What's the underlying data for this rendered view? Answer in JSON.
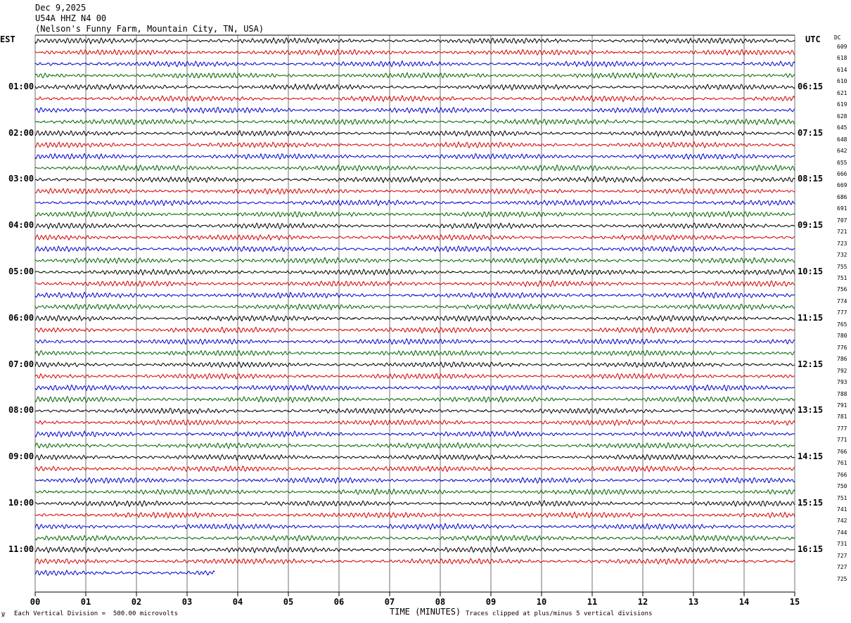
{
  "header": {
    "date": "Dec 9,2025",
    "station": "U54A HHZ N4 00",
    "location": "(Nelson's Funny Farm, Mountain City, TN, USA)"
  },
  "left_timezone": "EST",
  "right_timezone": "UTC",
  "dc_label": "DC",
  "footer": {
    "scale_note": "Each Vertical Division =  500.00 microvolts",
    "xlabel": "TIME (MINUTES)",
    "clip_note": "Traces clipped at plus/minus 5 vertical divisions",
    "corner_mark": "℣"
  },
  "colors": {
    "cycle": [
      "#000000",
      "#d40000",
      "#0000cc",
      "#006400"
    ],
    "grid": "#707070"
  },
  "chart_data": {
    "type": "line",
    "title": "",
    "xlabel": "TIME (MINUTES)",
    "ylabel": "",
    "xlim": [
      0,
      15
    ],
    "x_ticks": [
      "00",
      "01",
      "02",
      "03",
      "04",
      "05",
      "06",
      "07",
      "08",
      "09",
      "10",
      "11",
      "12",
      "13",
      "14",
      "15"
    ],
    "grid": true,
    "minutes_per_line": 15,
    "rows": [
      {
        "left": "",
        "right": "",
        "dc": "609"
      },
      {
        "left": "",
        "right": "",
        "dc": "618"
      },
      {
        "left": "",
        "right": "",
        "dc": "614"
      },
      {
        "left": "",
        "right": "",
        "dc": "610"
      },
      {
        "left": "01:00",
        "right": "06:15",
        "dc": "621"
      },
      {
        "left": "",
        "right": "",
        "dc": "619"
      },
      {
        "left": "",
        "right": "",
        "dc": "628"
      },
      {
        "left": "",
        "right": "",
        "dc": "645"
      },
      {
        "left": "02:00",
        "right": "07:15",
        "dc": "648"
      },
      {
        "left": "",
        "right": "",
        "dc": "642"
      },
      {
        "left": "",
        "right": "",
        "dc": "655"
      },
      {
        "left": "",
        "right": "",
        "dc": "666"
      },
      {
        "left": "03:00",
        "right": "08:15",
        "dc": "669"
      },
      {
        "left": "",
        "right": "",
        "dc": "686"
      },
      {
        "left": "",
        "right": "",
        "dc": "691"
      },
      {
        "left": "",
        "right": "",
        "dc": "707"
      },
      {
        "left": "04:00",
        "right": "09:15",
        "dc": "721"
      },
      {
        "left": "",
        "right": "",
        "dc": "723"
      },
      {
        "left": "",
        "right": "",
        "dc": "732"
      },
      {
        "left": "",
        "right": "",
        "dc": "755"
      },
      {
        "left": "05:00",
        "right": "10:15",
        "dc": "751"
      },
      {
        "left": "",
        "right": "",
        "dc": "756"
      },
      {
        "left": "",
        "right": "",
        "dc": "774"
      },
      {
        "left": "",
        "right": "",
        "dc": "777"
      },
      {
        "left": "06:00",
        "right": "11:15",
        "dc": "765"
      },
      {
        "left": "",
        "right": "",
        "dc": "780"
      },
      {
        "left": "",
        "right": "",
        "dc": "776"
      },
      {
        "left": "",
        "right": "",
        "dc": "786"
      },
      {
        "left": "07:00",
        "right": "12:15",
        "dc": "792"
      },
      {
        "left": "",
        "right": "",
        "dc": "793"
      },
      {
        "left": "",
        "right": "",
        "dc": "788"
      },
      {
        "left": "",
        "right": "",
        "dc": "791"
      },
      {
        "left": "08:00",
        "right": "13:15",
        "dc": "781"
      },
      {
        "left": "",
        "right": "",
        "dc": "777"
      },
      {
        "left": "",
        "right": "",
        "dc": "771"
      },
      {
        "left": "",
        "right": "",
        "dc": "766"
      },
      {
        "left": "09:00",
        "right": "14:15",
        "dc": "761"
      },
      {
        "left": "",
        "right": "",
        "dc": "766"
      },
      {
        "left": "",
        "right": "",
        "dc": "750"
      },
      {
        "left": "",
        "right": "",
        "dc": "751"
      },
      {
        "left": "10:00",
        "right": "15:15",
        "dc": "741"
      },
      {
        "left": "",
        "right": "",
        "dc": "742"
      },
      {
        "left": "",
        "right": "",
        "dc": "744"
      },
      {
        "left": "",
        "right": "",
        "dc": "731"
      },
      {
        "left": "11:00",
        "right": "16:15",
        "dc": "727"
      },
      {
        "left": "",
        "right": "",
        "dc": "727"
      },
      {
        "left": "",
        "right": "",
        "dc": "725",
        "ends_at_minute": 3.55
      }
    ]
  }
}
